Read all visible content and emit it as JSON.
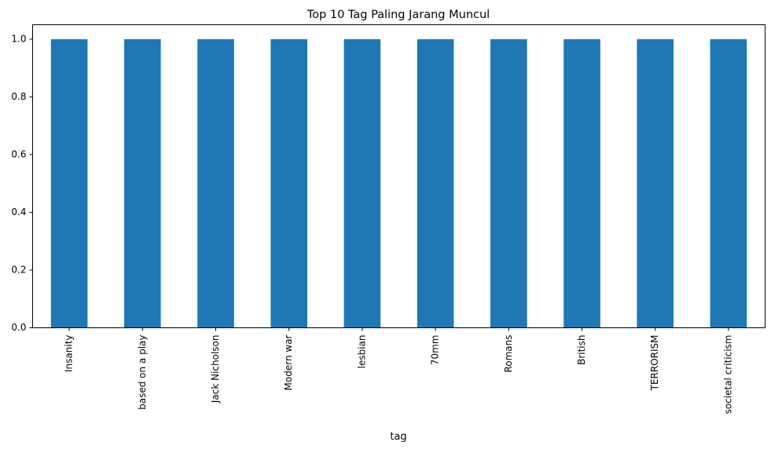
{
  "chart_data": {
    "type": "bar",
    "title": "Top 10 Tag Paling Jarang Muncul",
    "xlabel": "tag",
    "ylabel": "",
    "categories": [
      "Insanity",
      "based on a play",
      "Jack Nicholson",
      "Modern war",
      "lesbian",
      "70mm",
      "Romans",
      "British",
      "TERRORISM",
      "societal criticism"
    ],
    "values": [
      1,
      1,
      1,
      1,
      1,
      1,
      1,
      1,
      1,
      1
    ],
    "ylim": [
      0,
      1.05
    ],
    "yticks": [
      0.0,
      0.2,
      0.4,
      0.6,
      0.8,
      1.0
    ],
    "ytick_labels": [
      "0.0",
      "0.2",
      "0.4",
      "0.6",
      "0.8",
      "1.0"
    ],
    "grid": false,
    "legend": "none",
    "bar_color": "#1f77b4"
  }
}
